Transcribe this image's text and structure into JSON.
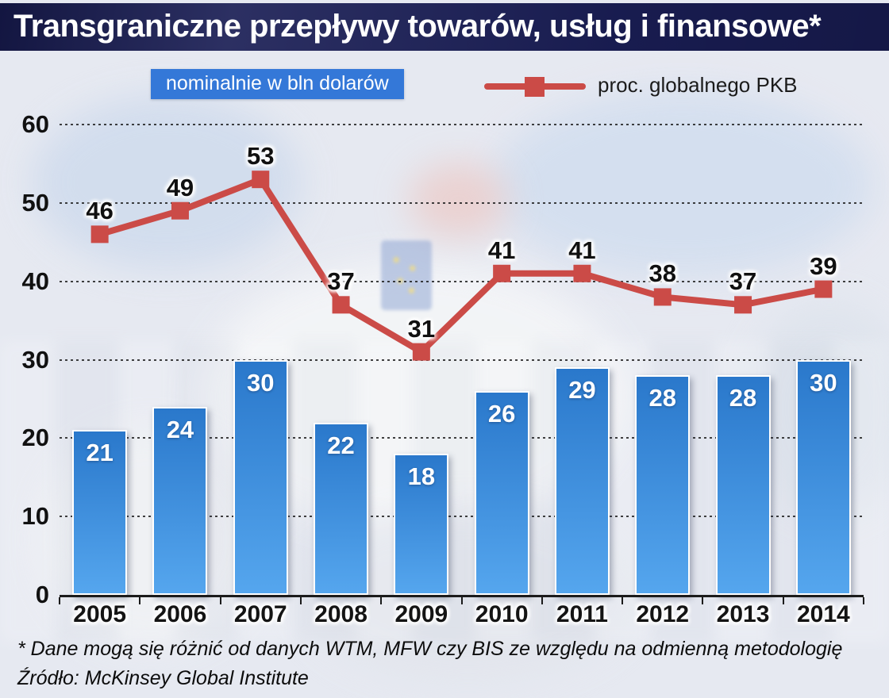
{
  "title": "Transgraniczne przepływy towarów, usług i finansowe*",
  "legend": {
    "bars_label": "nominalnie w bln dolarów",
    "line_label": "proc. globalnego PKB"
  },
  "footnote": "* Dane mogą się różnić od danych WTM, MFW czy BIS ze względu na odmienną metodologię",
  "source": "Źródło: McKinsey Global Institute",
  "colors": {
    "title_bg": "#1a1e55",
    "legend_box": "#3478d8",
    "line": "#cb4b47",
    "bar_top": "#2a78cb",
    "bar_bottom": "#55a6ee",
    "grid": "#1f1f1f",
    "background": "#e6e9f1"
  },
  "chart_data": {
    "type": "bar+line",
    "title": "Transgraniczne przepływy towarów, usług i finansowe*",
    "categories": [
      "2005",
      "2006",
      "2007",
      "2008",
      "2009",
      "2010",
      "2011",
      "2012",
      "2013",
      "2014"
    ],
    "series": [
      {
        "name": "nominalnie w bln dolarów",
        "type": "bar",
        "values": [
          21,
          24,
          30,
          22,
          18,
          26,
          29,
          28,
          28,
          30
        ]
      },
      {
        "name": "proc. globalnego PKB",
        "type": "line",
        "values": [
          46,
          49,
          53,
          37,
          31,
          41,
          41,
          38,
          37,
          39
        ]
      }
    ],
    "xlabel": "",
    "ylabel": "",
    "ylim": [
      0,
      60
    ],
    "yticks": [
      0,
      10,
      20,
      30,
      40,
      50,
      60
    ],
    "grid": "horizontal-dotted",
    "legend_position": "top"
  }
}
